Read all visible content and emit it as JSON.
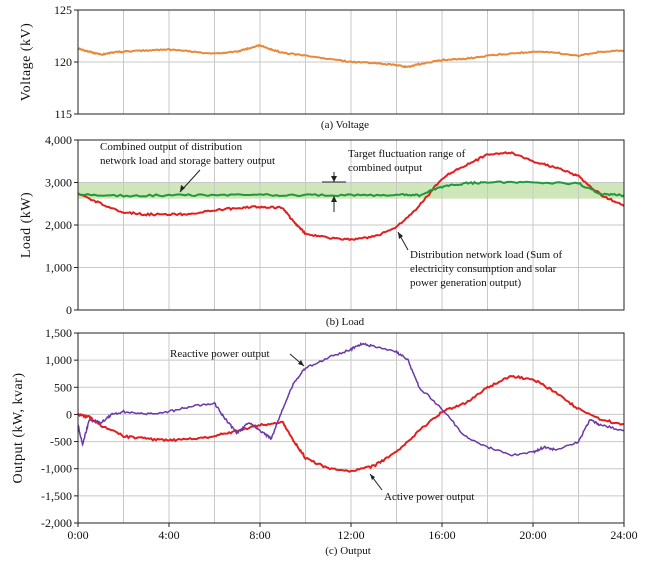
{
  "chart_data": [
    {
      "id": "voltage",
      "type": "line",
      "caption": "(a) Voltage",
      "ylabel": "Voltage (kV)",
      "xlim": [
        0,
        24
      ],
      "ylim": [
        115,
        125
      ],
      "yticks": [
        "125",
        "120",
        "115"
      ],
      "ytick_values": [
        125,
        120,
        115
      ],
      "grid": true,
      "series": [
        {
          "color": "#e8883a",
          "x": [
            0,
            0.5,
            1,
            1.5,
            2,
            3,
            4,
            5,
            6,
            7,
            7.5,
            8,
            8.5,
            9,
            10,
            11,
            12,
            13,
            14,
            14.5,
            15,
            16,
            17,
            18,
            19,
            20,
            21,
            22,
            23,
            24
          ],
          "y": [
            121.3,
            121.0,
            120.7,
            120.9,
            121.0,
            121.1,
            121.2,
            121.0,
            120.8,
            121.0,
            121.3,
            121.6,
            121.2,
            120.9,
            120.6,
            120.3,
            120.0,
            119.9,
            119.7,
            119.5,
            119.8,
            120.2,
            120.3,
            120.6,
            120.8,
            121.0,
            120.9,
            120.6,
            121.0,
            121.1
          ]
        }
      ]
    },
    {
      "id": "load",
      "type": "line",
      "caption": "(b) Load",
      "ylabel": "Load (kW)",
      "xlim": [
        0,
        24
      ],
      "ylim": [
        0,
        4000
      ],
      "yticks": [
        "4,000",
        "3,000",
        "2,000",
        "1,000",
        "0"
      ],
      "ytick_values": [
        4000,
        3000,
        2000,
        1000,
        0
      ],
      "grid": true,
      "band": {
        "from": 2620,
        "to": 3000,
        "color": "#cfe7b8"
      },
      "series": [
        {
          "color": "#e02020",
          "x": [
            0,
            1,
            2,
            3,
            4,
            5,
            6,
            7,
            8,
            9,
            9.5,
            10,
            11,
            12,
            13,
            14,
            15,
            16,
            17,
            18,
            19,
            20,
            21,
            22,
            23,
            24
          ],
          "y": [
            2750,
            2500,
            2300,
            2250,
            2250,
            2250,
            2350,
            2400,
            2430,
            2400,
            2050,
            1800,
            1700,
            1650,
            1720,
            1950,
            2450,
            3100,
            3400,
            3650,
            3700,
            3500,
            3350,
            3150,
            2700,
            2450
          ]
        },
        {
          "color": "#1f9a3a",
          "x": [
            0,
            2,
            4,
            6,
            8,
            10,
            12,
            14,
            15,
            16,
            17,
            18,
            20,
            22,
            23,
            24
          ],
          "y": [
            2720,
            2690,
            2700,
            2700,
            2710,
            2700,
            2700,
            2710,
            2700,
            2900,
            2980,
            3000,
            3000,
            2980,
            2720,
            2700
          ]
        }
      ],
      "annotations": [
        "Combined output of distribution",
        "network load and storage battery output",
        "Target fluctuation range of",
        "combined output",
        "Distribution network load (Sum of",
        "electricity consumption and solar",
        "power generation output)"
      ]
    },
    {
      "id": "output",
      "type": "line",
      "caption": "(c) Output",
      "ylabel": "Output (kW, kvar)",
      "xlim": [
        0,
        24
      ],
      "ylim": [
        -2000,
        1500
      ],
      "yticks": [
        "1,500",
        "1,000",
        "500",
        "0",
        "-500",
        "-1,000",
        "-1,500",
        "-2,000"
      ],
      "ytick_values": [
        1500,
        1000,
        500,
        0,
        -500,
        -1000,
        -1500,
        -2000
      ],
      "xticks": [
        "0:00",
        "4:00",
        "8:00",
        "12:00",
        "16:00",
        "20:00",
        "24:00"
      ],
      "xtick_values": [
        0,
        4,
        8,
        12,
        16,
        20,
        24
      ],
      "grid": true,
      "series": [
        {
          "color": "#e02020",
          "x": [
            0,
            0.5,
            1,
            2,
            3,
            4,
            5,
            6,
            7,
            8,
            9,
            9.5,
            10,
            11,
            12,
            13,
            14,
            15,
            16,
            17,
            18,
            19,
            20,
            21,
            22,
            23,
            24
          ],
          "y": [
            0,
            -50,
            -200,
            -400,
            -450,
            -480,
            -450,
            -400,
            -300,
            -200,
            -150,
            -500,
            -800,
            -1000,
            -1050,
            -950,
            -700,
            -300,
            50,
            200,
            500,
            700,
            650,
            400,
            100,
            -100,
            -180
          ]
        },
        {
          "color": "#6a38a8",
          "x": [
            0,
            0.2,
            0.5,
            1,
            1.5,
            2,
            3,
            4,
            5,
            6,
            6.5,
            7,
            7.5,
            8,
            8.5,
            9,
            9.5,
            10,
            11,
            12,
            12.5,
            13,
            14,
            14.5,
            15,
            16,
            17,
            18,
            19,
            20,
            20.5,
            21,
            22,
            22.5,
            23,
            24
          ],
          "y": [
            -200,
            -550,
            -100,
            -150,
            0,
            50,
            0,
            50,
            150,
            200,
            -100,
            -350,
            -150,
            -300,
            -450,
            100,
            600,
            850,
            1050,
            1200,
            1300,
            1250,
            1150,
            1000,
            500,
            100,
            -400,
            -600,
            -750,
            -700,
            -600,
            -650,
            -500,
            -100,
            -200,
            -300
          ]
        }
      ],
      "annotations": [
        "Reactive power output",
        "Active power output"
      ]
    }
  ]
}
